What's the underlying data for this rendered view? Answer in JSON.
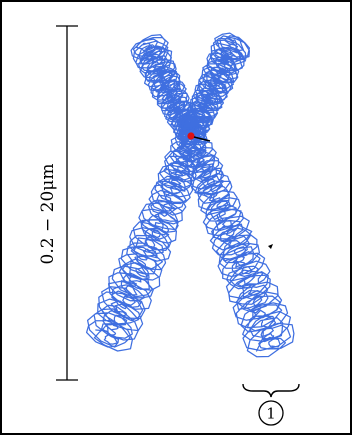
{
  "scale_bar": {
    "label": "0.2 − 20μm"
  },
  "callout": {
    "number": "1"
  },
  "colors": {
    "chromatin": "#3f6fe0",
    "centromere": "#dd1111",
    "ink": "#000000",
    "frame": "#000000"
  }
}
